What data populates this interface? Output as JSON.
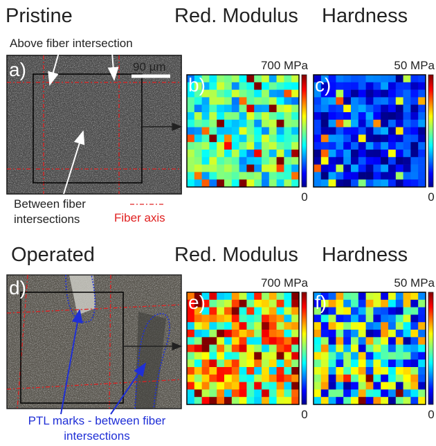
{
  "pristine": {
    "title": "Pristine",
    "image": {
      "label": "a)",
      "scale_bar": "90 µm",
      "annotation_top": "Above fiber intersection",
      "annotation_bottom": [
        "Between fiber",
        "intersections"
      ],
      "legend": "Fiber axis"
    },
    "modulus": {
      "title": "Red. Modulus",
      "label": "b)",
      "max": "700 MPa",
      "min": "0"
    },
    "hardness": {
      "title": "Hardness",
      "label": "c)",
      "max": "50 MPa",
      "min": "0"
    }
  },
  "operated": {
    "title": "Operated",
    "image": {
      "label": "d)",
      "annotation": [
        "PTL marks - between fiber",
        "intersections"
      ]
    },
    "modulus": {
      "title": "Red. Modulus",
      "label": "e)",
      "max": "700 MPa",
      "min": "0"
    },
    "hardness": {
      "title": "Hardness",
      "label": "f)",
      "max": "50 MPa",
      "min": "0"
    }
  }
}
